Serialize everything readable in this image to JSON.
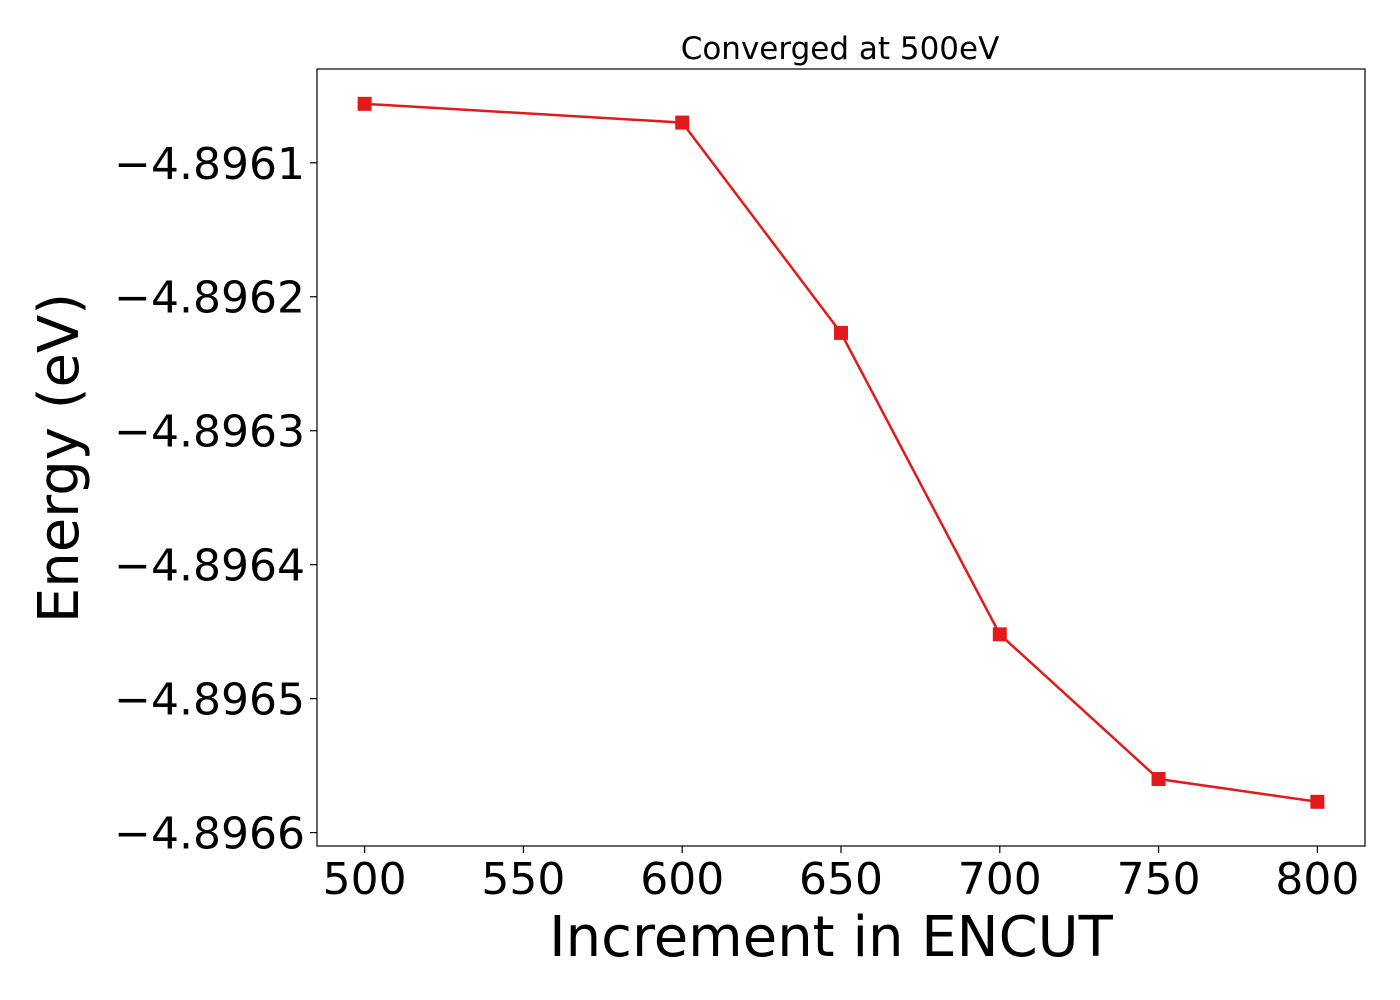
{
  "chart_data": {
    "type": "line",
    "title": "Converged at 500eV",
    "xlabel": "Increment in ENCUT",
    "ylabel": "Energy (eV)",
    "xlim": [
      485,
      815
    ],
    "ylim": [
      -4.89661,
      -4.89603
    ],
    "x_ticks": [
      500,
      550,
      600,
      650,
      700,
      750,
      800
    ],
    "x_tick_labels": [
      "500",
      "550",
      "600",
      "650",
      "700",
      "750",
      "800"
    ],
    "y_ticks": [
      -4.8961,
      -4.8962,
      -4.8963,
      -4.8964,
      -4.8965,
      -4.8966
    ],
    "y_tick_labels": [
      "−4.8961",
      "−4.8962",
      "−4.8963",
      "−4.8964",
      "−4.8965",
      "−4.8966"
    ],
    "grid": false,
    "series": [
      {
        "color": "#e31a1c",
        "marker": "square",
        "x": [
          500,
          600,
          650,
          700,
          750,
          800
        ],
        "y": [
          -4.896056,
          -4.89607,
          -4.896227,
          -4.896452,
          -4.89656,
          -4.896577
        ]
      }
    ]
  }
}
